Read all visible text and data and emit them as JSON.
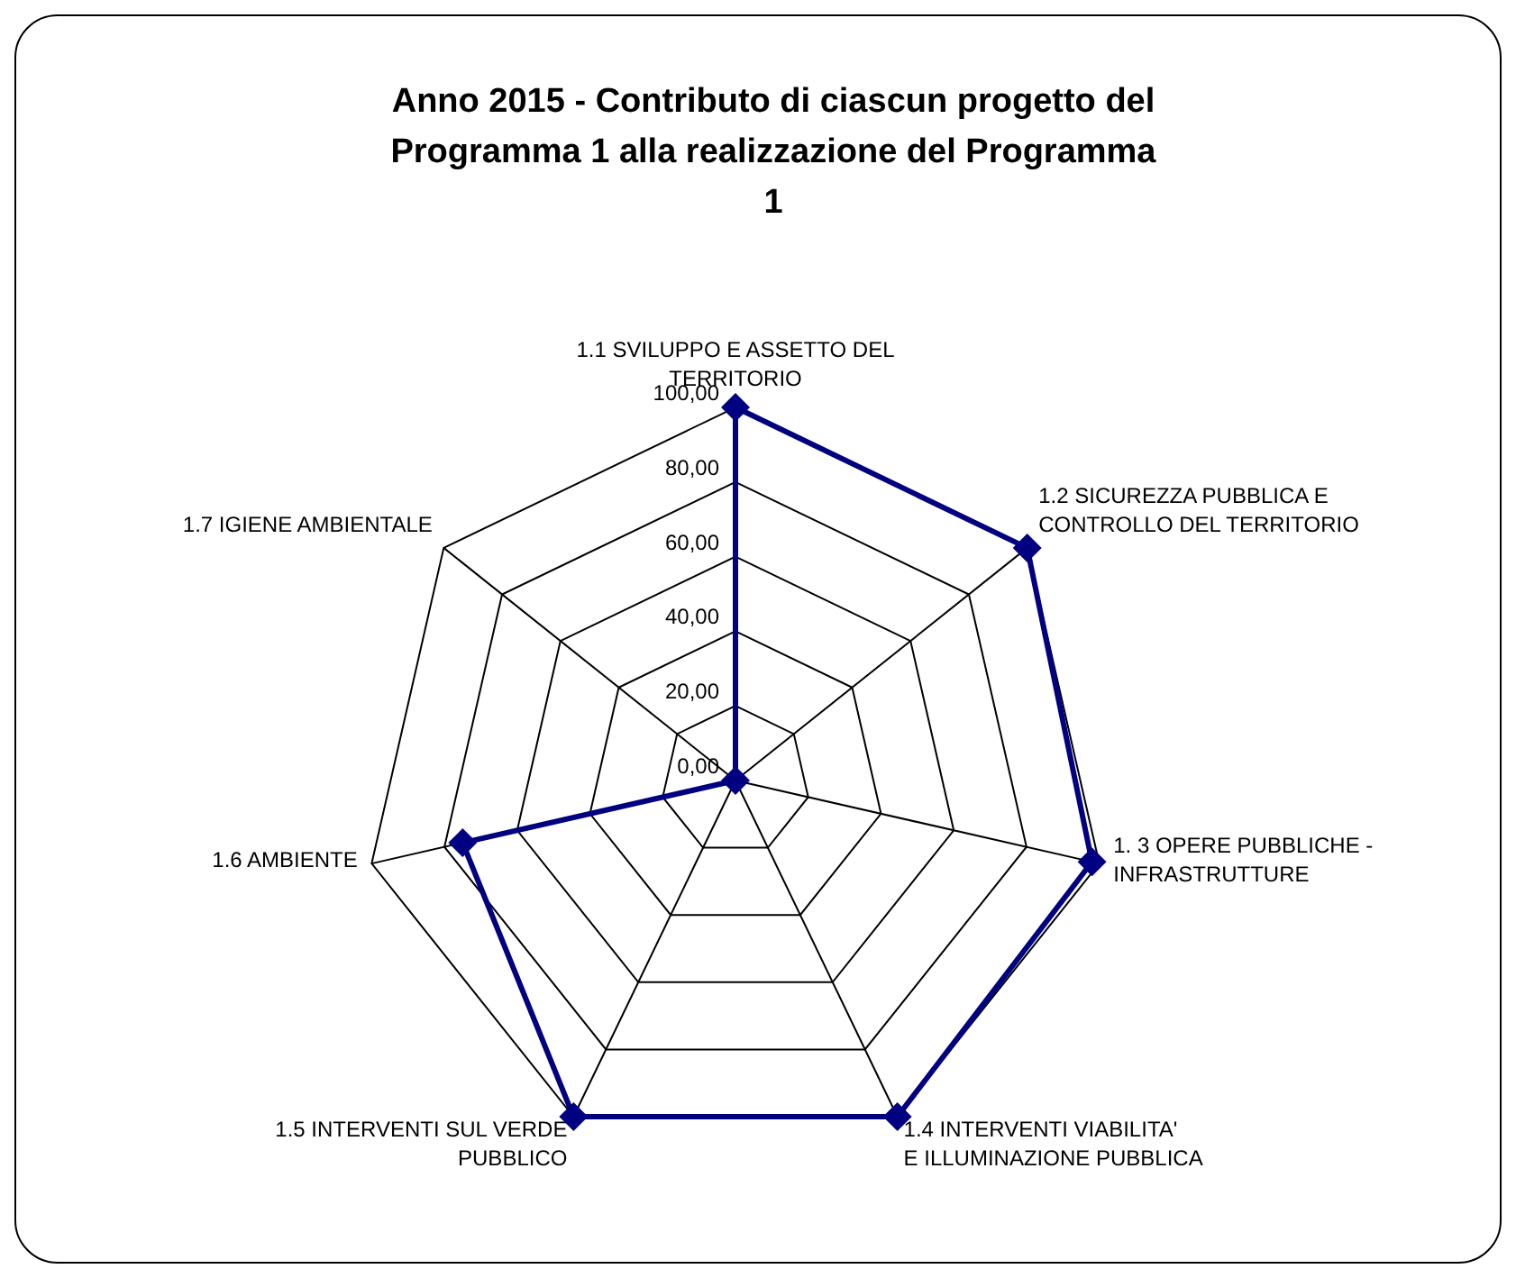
{
  "chart_data": {
    "type": "radar",
    "title": "Anno 2015 - Contributo di ciascun progetto del Programma 1 alla realizzazione del Programma 1",
    "categories": [
      "1.1 SVILUPPO E ASSETTO DEL TERRITORIO",
      "1.2 SICUREZZA PUBBLICA E CONTROLLO DEL TERRITORIO",
      "1. 3 OPERE PUBBLICHE - INFRASTRUTTURE",
      "1.4 INTERVENTI  VIABILITA' E ILLUMINAZIONE PUBBLICA",
      "1.5 INTERVENTI SUL VERDE PUBBLICO",
      "1.6 AMBIENTE",
      "1.7 IGIENE AMBIENTALE"
    ],
    "series": [
      {
        "color": "#000080",
        "values": [
          100,
          100,
          98,
          100,
          100,
          75,
          0
        ]
      }
    ],
    "ylim": [
      0,
      100
    ],
    "yticks": [
      {
        "value": 0,
        "label": "0,00"
      },
      {
        "value": 20,
        "label": "20,00"
      },
      {
        "value": 40,
        "label": "40,00"
      },
      {
        "value": 60,
        "label": "60,00"
      },
      {
        "value": 80,
        "label": "80,00"
      },
      {
        "value": 100,
        "label": "100,00"
      }
    ],
    "grid": true,
    "legend": false,
    "marker": "diamond",
    "line_style": "solid"
  }
}
